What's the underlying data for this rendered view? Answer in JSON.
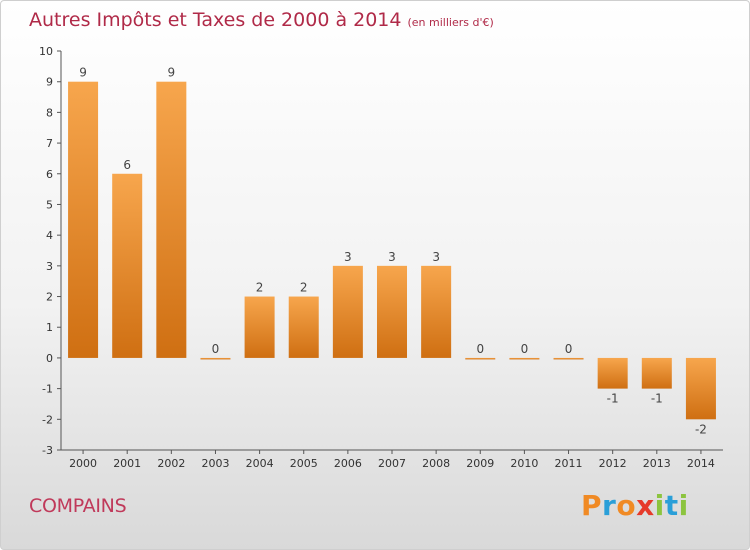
{
  "header": {
    "title": "Autres Impôts et Taxes de 2000 à 2014",
    "unit": "(en milliers d'€)"
  },
  "footer": {
    "commune": "COMPAINS",
    "logo_text": "Proxiti"
  },
  "colors": {
    "bar_light": "#f7a64d",
    "bar_dark": "#cf6f12",
    "title": "#b02a48",
    "logo_letters": [
      "#f08a24",
      "#2a9fd8",
      "#f08a24",
      "#e63a2a",
      "#8cc43f",
      "#2a9fd8",
      "#8cc43f"
    ]
  },
  "chart_data": {
    "type": "bar",
    "title": "Autres Impôts et Taxes de 2000 à 2014",
    "subtitle": "(en milliers d'€)",
    "categories": [
      "2000",
      "2001",
      "2002",
      "2003",
      "2004",
      "2005",
      "2006",
      "2007",
      "2008",
      "2009",
      "2010",
      "2011",
      "2012",
      "2013",
      "2014"
    ],
    "values": [
      9,
      6,
      9,
      0,
      2,
      2,
      3,
      3,
      3,
      0,
      0,
      0,
      -1,
      -1,
      -2
    ],
    "labels": [
      "9",
      "6",
      "9",
      "0",
      "2",
      "2",
      "3",
      "3",
      "3",
      "0",
      "0",
      "0",
      "-1",
      "-1",
      "-2"
    ],
    "ylim": [
      -3,
      10
    ],
    "yticks": [
      -3,
      -2,
      -1,
      0,
      1,
      2,
      3,
      4,
      5,
      6,
      7,
      8,
      9,
      10
    ],
    "ytick_labels": [
      "-3",
      "-2",
      "-1",
      "0",
      "1",
      "2",
      "3",
      "4",
      "5",
      "6",
      "7",
      "8",
      "9",
      "10"
    ],
    "grid": false,
    "legend": "none"
  }
}
